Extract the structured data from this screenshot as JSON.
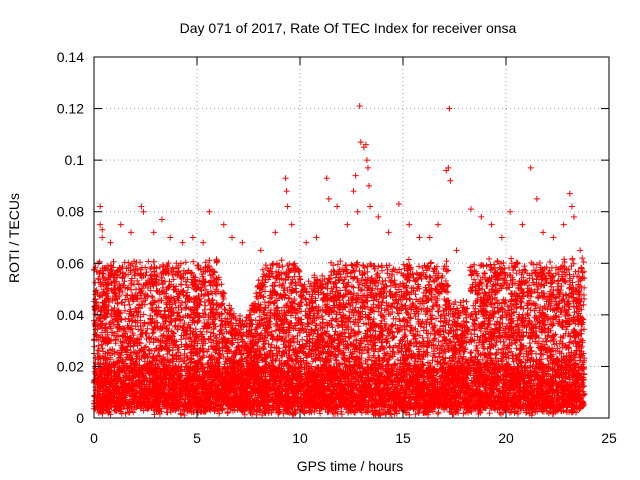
{
  "chart_data": {
    "type": "scatter",
    "title": "Day 071 of 2017, Rate Of TEC Index for receiver onsa",
    "xlabel": "GPS time / hours",
    "ylabel": "ROTI / TECUs",
    "xlim": [
      0,
      25
    ],
    "ylim": [
      0,
      0.14
    ],
    "x_ticks": [
      {
        "value": 0,
        "label": "0"
      },
      {
        "value": 5,
        "label": "5"
      },
      {
        "value": 10,
        "label": "10"
      },
      {
        "value": 15,
        "label": "15"
      },
      {
        "value": 20,
        "label": "20"
      },
      {
        "value": 25,
        "label": "25"
      }
    ],
    "y_ticks": [
      {
        "value": 0,
        "label": "0"
      },
      {
        "value": 0.02,
        "label": "0.02"
      },
      {
        "value": 0.04,
        "label": "0.04"
      },
      {
        "value": 0.06,
        "label": "0.06"
      },
      {
        "value": 0.08,
        "label": "0.08"
      },
      {
        "value": 0.1,
        "label": "0.1"
      },
      {
        "value": 0.12,
        "label": "0.12"
      },
      {
        "value": 0.14,
        "label": "0.14"
      }
    ],
    "grid": true,
    "marker": "plus",
    "color": "#ff0000",
    "x_data_range": [
      0,
      23.8
    ],
    "points": [
      [
        0.1,
        0.045
      ],
      [
        0.2,
        0.06
      ],
      [
        0.3,
        0.075
      ],
      [
        0.3,
        0.082
      ],
      [
        0.4,
        0.073
      ],
      [
        0.4,
        0.07
      ],
      [
        0.8,
        0.068
      ],
      [
        1.3,
        0.075
      ],
      [
        1.8,
        0.072
      ],
      [
        2.3,
        0.082
      ],
      [
        2.4,
        0.08
      ],
      [
        2.9,
        0.072
      ],
      [
        3.3,
        0.077
      ],
      [
        3.7,
        0.07
      ],
      [
        4.3,
        0.068
      ],
      [
        4.8,
        0.07
      ],
      [
        5.3,
        0.068
      ],
      [
        5.6,
        0.08
      ],
      [
        6.3,
        0.075
      ],
      [
        6.7,
        0.07
      ],
      [
        7.2,
        0.068
      ],
      [
        8.1,
        0.065
      ],
      [
        8.8,
        0.072
      ],
      [
        9.3,
        0.093
      ],
      [
        9.35,
        0.088
      ],
      [
        9.4,
        0.082
      ],
      [
        9.6,
        0.075
      ],
      [
        10.3,
        0.068
      ],
      [
        10.8,
        0.07
      ],
      [
        11.3,
        0.093
      ],
      [
        11.4,
        0.085
      ],
      [
        11.8,
        0.082
      ],
      [
        12.3,
        0.075
      ],
      [
        12.6,
        0.088
      ],
      [
        12.7,
        0.094
      ],
      [
        12.8,
        0.08
      ],
      [
        12.9,
        0.121
      ],
      [
        12.95,
        0.107
      ],
      [
        13.1,
        0.105
      ],
      [
        13.2,
        0.106
      ],
      [
        13.25,
        0.1
      ],
      [
        13.3,
        0.097
      ],
      [
        13.35,
        0.09
      ],
      [
        13.4,
        0.082
      ],
      [
        13.8,
        0.078
      ],
      [
        14.3,
        0.072
      ],
      [
        14.8,
        0.083
      ],
      [
        15.3,
        0.075
      ],
      [
        15.8,
        0.07
      ],
      [
        16.3,
        0.07
      ],
      [
        16.7,
        0.075
      ],
      [
        17.1,
        0.096
      ],
      [
        17.2,
        0.097
      ],
      [
        17.25,
        0.12
      ],
      [
        17.3,
        0.092
      ],
      [
        17.6,
        0.065
      ],
      [
        18.3,
        0.081
      ],
      [
        18.8,
        0.078
      ],
      [
        19.3,
        0.075
      ],
      [
        19.8,
        0.07
      ],
      [
        20.2,
        0.08
      ],
      [
        20.8,
        0.075
      ],
      [
        21.2,
        0.097
      ],
      [
        21.5,
        0.085
      ],
      [
        21.8,
        0.072
      ],
      [
        22.3,
        0.07
      ],
      [
        22.8,
        0.075
      ],
      [
        23.1,
        0.087
      ],
      [
        23.2,
        0.082
      ],
      [
        23.3,
        0.078
      ],
      [
        23.6,
        0.065
      ],
      [
        23.7,
        0.062
      ]
    ]
  }
}
